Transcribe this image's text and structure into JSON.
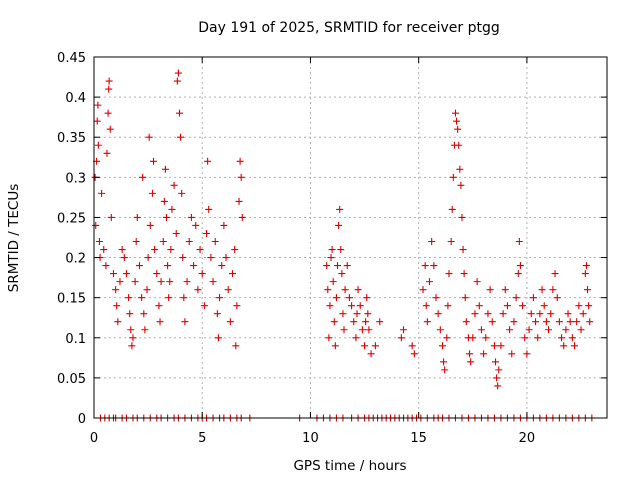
{
  "chart_data": {
    "type": "scatter",
    "title": "Day 191 of 2025, SRMTID for receiver ptgg",
    "xlabel": "GPS time / hours",
    "ylabel": "SRMTID / TECUs",
    "xlim": [
      0,
      23.7
    ],
    "ylim": [
      0,
      0.45
    ],
    "xticks": [
      0,
      5,
      10,
      15,
      20
    ],
    "yticks": [
      0,
      0.05,
      0.1,
      0.15,
      0.2,
      0.25,
      0.3,
      0.35,
      0.4,
      0.45
    ],
    "xtick_labels": [
      "0",
      "5",
      "10",
      "15",
      "20"
    ],
    "ytick_labels": [
      "0",
      "0.05",
      "0.1",
      "0.15",
      "0.2",
      "0.25",
      "0.3",
      "0.35",
      "0.4",
      "0.45"
    ],
    "grid": true,
    "marker": "+",
    "marker_color": "#dd0000",
    "series": [
      {
        "name": "SRMTID",
        "points": [
          [
            0.05,
            0.3
          ],
          [
            0.08,
            0.24
          ],
          [
            0.12,
            0.32
          ],
          [
            0.15,
            0.37
          ],
          [
            0.18,
            0.39
          ],
          [
            0.2,
            0.34
          ],
          [
            0.25,
            0.22
          ],
          [
            0.28,
            0.2
          ],
          [
            0.35,
            0.28
          ],
          [
            0.45,
            0.21
          ],
          [
            0.55,
            0.19
          ],
          [
            0.6,
            0.33
          ],
          [
            0.65,
            0.38
          ],
          [
            0.68,
            0.41
          ],
          [
            0.7,
            0.42
          ],
          [
            0.75,
            0.36
          ],
          [
            0.8,
            0.25
          ],
          [
            0.9,
            0.18
          ],
          [
            1.0,
            0.16
          ],
          [
            1.05,
            0.14
          ],
          [
            1.1,
            0.12
          ],
          [
            1.2,
            0.17
          ],
          [
            1.3,
            0.21
          ],
          [
            1.4,
            0.2
          ],
          [
            1.5,
            0.18
          ],
          [
            1.6,
            0.15
          ],
          [
            1.65,
            0.13
          ],
          [
            1.7,
            0.11
          ],
          [
            1.75,
            0.09
          ],
          [
            1.8,
            0.1
          ],
          [
            1.9,
            0.17
          ],
          [
            1.95,
            0.22
          ],
          [
            2.0,
            0.25
          ],
          [
            2.1,
            0.19
          ],
          [
            2.2,
            0.15
          ],
          [
            2.25,
            0.3
          ],
          [
            2.3,
            0.13
          ],
          [
            2.35,
            0.11
          ],
          [
            2.45,
            0.16
          ],
          [
            2.5,
            0.2
          ],
          [
            2.55,
            0.35
          ],
          [
            2.6,
            0.24
          ],
          [
            2.7,
            0.28
          ],
          [
            2.75,
            0.32
          ],
          [
            2.8,
            0.21
          ],
          [
            2.9,
            0.18
          ],
          [
            3.0,
            0.14
          ],
          [
            3.05,
            0.12
          ],
          [
            3.1,
            0.17
          ],
          [
            3.2,
            0.22
          ],
          [
            3.25,
            0.27
          ],
          [
            3.3,
            0.31
          ],
          [
            3.35,
            0.25
          ],
          [
            3.4,
            0.19
          ],
          [
            3.45,
            0.15
          ],
          [
            3.5,
            0.17
          ],
          [
            3.55,
            0.21
          ],
          [
            3.6,
            0.26
          ],
          [
            3.7,
            0.29
          ],
          [
            3.8,
            0.23
          ],
          [
            3.85,
            0.42
          ],
          [
            3.9,
            0.43
          ],
          [
            3.95,
            0.38
          ],
          [
            4.0,
            0.35
          ],
          [
            4.05,
            0.28
          ],
          [
            4.1,
            0.2
          ],
          [
            4.15,
            0.15
          ],
          [
            4.2,
            0.12
          ],
          [
            4.3,
            0.17
          ],
          [
            4.4,
            0.22
          ],
          [
            4.5,
            0.25
          ],
          [
            4.6,
            0.19
          ],
          [
            4.7,
            0.24
          ],
          [
            4.8,
            0.16
          ],
          [
            4.9,
            0.21
          ],
          [
            5.0,
            0.18
          ],
          [
            5.1,
            0.14
          ],
          [
            5.2,
            0.23
          ],
          [
            5.25,
            0.32
          ],
          [
            5.3,
            0.26
          ],
          [
            5.4,
            0.2
          ],
          [
            5.5,
            0.17
          ],
          [
            5.6,
            0.22
          ],
          [
            5.7,
            0.13
          ],
          [
            5.75,
            0.1
          ],
          [
            5.8,
            0.15
          ],
          [
            5.9,
            0.19
          ],
          [
            6.0,
            0.24
          ],
          [
            6.1,
            0.2
          ],
          [
            6.2,
            0.16
          ],
          [
            6.3,
            0.12
          ],
          [
            6.4,
            0.18
          ],
          [
            6.5,
            0.21
          ],
          [
            6.55,
            0.09
          ],
          [
            6.6,
            0.14
          ],
          [
            6.7,
            0.27
          ],
          [
            6.75,
            0.32
          ],
          [
            6.8,
            0.3
          ],
          [
            6.85,
            0.25
          ],
          [
            10.75,
            0.19
          ],
          [
            10.8,
            0.16
          ],
          [
            10.85,
            0.1
          ],
          [
            10.9,
            0.14
          ],
          [
            10.95,
            0.2
          ],
          [
            11.0,
            0.21
          ],
          [
            11.05,
            0.17
          ],
          [
            11.1,
            0.12
          ],
          [
            11.15,
            0.09
          ],
          [
            11.2,
            0.15
          ],
          [
            11.25,
            0.19
          ],
          [
            11.3,
            0.24
          ],
          [
            11.35,
            0.26
          ],
          [
            11.4,
            0.21
          ],
          [
            11.45,
            0.18
          ],
          [
            11.5,
            0.13
          ],
          [
            11.55,
            0.11
          ],
          [
            11.6,
            0.16
          ],
          [
            11.7,
            0.19
          ],
          [
            11.8,
            0.15
          ],
          [
            11.9,
            0.14
          ],
          [
            12.0,
            0.12
          ],
          [
            12.1,
            0.1
          ],
          [
            12.15,
            0.13
          ],
          [
            12.2,
            0.16
          ],
          [
            12.3,
            0.14
          ],
          [
            12.4,
            0.11
          ],
          [
            12.5,
            0.09
          ],
          [
            12.55,
            0.12
          ],
          [
            12.6,
            0.15
          ],
          [
            12.65,
            0.13
          ],
          [
            12.7,
            0.11
          ],
          [
            12.8,
            0.08
          ],
          [
            13.0,
            0.09
          ],
          [
            13.2,
            0.12
          ],
          [
            14.2,
            0.1
          ],
          [
            14.3,
            0.11
          ],
          [
            14.7,
            0.09
          ],
          [
            14.8,
            0.08
          ],
          [
            15.2,
            0.16
          ],
          [
            15.3,
            0.19
          ],
          [
            15.35,
            0.14
          ],
          [
            15.4,
            0.12
          ],
          [
            15.5,
            0.17
          ],
          [
            15.6,
            0.22
          ],
          [
            15.7,
            0.19
          ],
          [
            15.8,
            0.15
          ],
          [
            15.9,
            0.13
          ],
          [
            16.0,
            0.11
          ],
          [
            16.1,
            0.09
          ],
          [
            16.15,
            0.07
          ],
          [
            16.2,
            0.06
          ],
          [
            16.3,
            0.1
          ],
          [
            16.35,
            0.14
          ],
          [
            16.4,
            0.18
          ],
          [
            16.5,
            0.22
          ],
          [
            16.55,
            0.26
          ],
          [
            16.6,
            0.3
          ],
          [
            16.65,
            0.34
          ],
          [
            16.7,
            0.38
          ],
          [
            16.75,
            0.37
          ],
          [
            16.8,
            0.36
          ],
          [
            16.85,
            0.34
          ],
          [
            16.9,
            0.31
          ],
          [
            16.95,
            0.29
          ],
          [
            17.0,
            0.25
          ],
          [
            17.05,
            0.21
          ],
          [
            17.1,
            0.18
          ],
          [
            17.15,
            0.15
          ],
          [
            17.2,
            0.12
          ],
          [
            17.3,
            0.1
          ],
          [
            17.35,
            0.08
          ],
          [
            17.4,
            0.07
          ],
          [
            17.5,
            0.1
          ],
          [
            17.6,
            0.13
          ],
          [
            17.7,
            0.17
          ],
          [
            17.8,
            0.14
          ],
          [
            17.9,
            0.11
          ],
          [
            18.0,
            0.08
          ],
          [
            18.1,
            0.1
          ],
          [
            18.2,
            0.13
          ],
          [
            18.3,
            0.16
          ],
          [
            18.4,
            0.12
          ],
          [
            18.5,
            0.09
          ],
          [
            18.55,
            0.07
          ],
          [
            18.6,
            0.05
          ],
          [
            18.65,
            0.04
          ],
          [
            18.7,
            0.06
          ],
          [
            18.8,
            0.09
          ],
          [
            18.9,
            0.13
          ],
          [
            19.0,
            0.16
          ],
          [
            19.1,
            0.14
          ],
          [
            19.2,
            0.11
          ],
          [
            19.3,
            0.08
          ],
          [
            19.4,
            0.12
          ],
          [
            19.5,
            0.15
          ],
          [
            19.6,
            0.18
          ],
          [
            19.65,
            0.22
          ],
          [
            19.7,
            0.19
          ],
          [
            19.8,
            0.14
          ],
          [
            19.9,
            0.1
          ],
          [
            20.0,
            0.08
          ],
          [
            20.1,
            0.11
          ],
          [
            20.2,
            0.13
          ],
          [
            20.3,
            0.15
          ],
          [
            20.4,
            0.12
          ],
          [
            20.5,
            0.1
          ],
          [
            20.6,
            0.13
          ],
          [
            20.7,
            0.16
          ],
          [
            20.8,
            0.14
          ],
          [
            20.9,
            0.12
          ],
          [
            21.0,
            0.11
          ],
          [
            21.1,
            0.13
          ],
          [
            21.2,
            0.16
          ],
          [
            21.3,
            0.18
          ],
          [
            21.4,
            0.15
          ],
          [
            21.5,
            0.12
          ],
          [
            21.6,
            0.1
          ],
          [
            21.7,
            0.09
          ],
          [
            21.8,
            0.11
          ],
          [
            21.9,
            0.13
          ],
          [
            22.0,
            0.12
          ],
          [
            22.1,
            0.1
          ],
          [
            22.2,
            0.09
          ],
          [
            22.3,
            0.12
          ],
          [
            22.4,
            0.14
          ],
          [
            22.5,
            0.11
          ],
          [
            22.6,
            0.13
          ],
          [
            22.7,
            0.18
          ],
          [
            22.75,
            0.19
          ],
          [
            22.8,
            0.16
          ],
          [
            22.85,
            0.14
          ],
          [
            22.9,
            0.12
          ],
          [
            0.3,
            0
          ],
          [
            0.5,
            0
          ],
          [
            0.7,
            0
          ],
          [
            0.9,
            0
          ],
          [
            1.0,
            0
          ],
          [
            1.3,
            0
          ],
          [
            1.5,
            0
          ],
          [
            1.8,
            0
          ],
          [
            2.0,
            0
          ],
          [
            2.3,
            0
          ],
          [
            2.6,
            0
          ],
          [
            2.9,
            0
          ],
          [
            3.1,
            0
          ],
          [
            3.4,
            0
          ],
          [
            3.7,
            0
          ],
          [
            3.9,
            0
          ],
          [
            4.2,
            0
          ],
          [
            4.5,
            0
          ],
          [
            4.8,
            0
          ],
          [
            5.0,
            0
          ],
          [
            5.2,
            0
          ],
          [
            5.5,
            0
          ],
          [
            5.8,
            0
          ],
          [
            6.0,
            0
          ],
          [
            6.3,
            0
          ],
          [
            6.6,
            0
          ],
          [
            6.8,
            0
          ],
          [
            7.2,
            0
          ],
          [
            9.5,
            0
          ],
          [
            10.3,
            0
          ],
          [
            10.6,
            0
          ],
          [
            10.9,
            0
          ],
          [
            11.2,
            0
          ],
          [
            11.5,
            0
          ],
          [
            11.9,
            0
          ],
          [
            12.2,
            0
          ],
          [
            12.5,
            0
          ],
          [
            12.7,
            0
          ],
          [
            12.9,
            0
          ],
          [
            13.1,
            0
          ],
          [
            13.3,
            0
          ],
          [
            13.5,
            0
          ],
          [
            13.7,
            0
          ],
          [
            13.9,
            0
          ],
          [
            14.1,
            0
          ],
          [
            14.3,
            0
          ],
          [
            14.5,
            0
          ],
          [
            14.7,
            0
          ],
          [
            14.9,
            0
          ],
          [
            15.1,
            0
          ],
          [
            15.4,
            0
          ],
          [
            15.7,
            0
          ],
          [
            15.9,
            0
          ],
          [
            16.1,
            0
          ],
          [
            16.4,
            0
          ],
          [
            16.7,
            0
          ],
          [
            17.0,
            0
          ],
          [
            17.3,
            0
          ],
          [
            17.6,
            0
          ],
          [
            17.9,
            0
          ],
          [
            18.2,
            0
          ],
          [
            18.5,
            0
          ],
          [
            18.8,
            0
          ],
          [
            19.1,
            0
          ],
          [
            19.4,
            0
          ],
          [
            19.7,
            0
          ],
          [
            20.0,
            0
          ],
          [
            20.3,
            0
          ],
          [
            20.6,
            0
          ],
          [
            20.9,
            0
          ],
          [
            21.2,
            0
          ],
          [
            21.5,
            0
          ],
          [
            21.8,
            0
          ],
          [
            22.1,
            0
          ],
          [
            22.4,
            0
          ],
          [
            22.7,
            0
          ],
          [
            23.0,
            0
          ]
        ]
      }
    ]
  }
}
